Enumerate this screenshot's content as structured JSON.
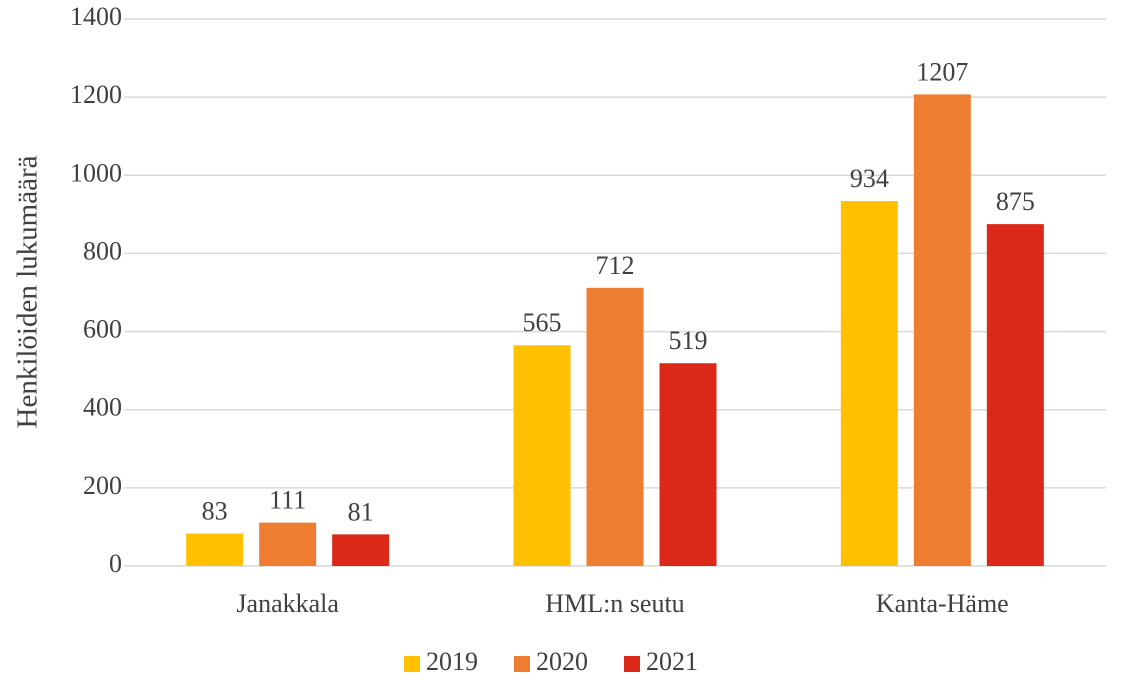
{
  "chart_data": {
    "type": "bar",
    "y_label": "Henkilöiden lukumäärä",
    "categories": [
      "Janakkala",
      "HML:n seutu",
      "Kanta-Häme"
    ],
    "series": [
      {
        "name": "2019",
        "color": "#ffc000",
        "values": [
          83,
          565,
          934
        ]
      },
      {
        "name": "2020",
        "color": "#ed7d31",
        "values": [
          111,
          712,
          1207
        ]
      },
      {
        "name": "2021",
        "color": "#dc2818",
        "values": [
          81,
          519,
          875
        ]
      }
    ],
    "ylim": [
      0,
      1400
    ],
    "yticks": [
      0,
      200,
      400,
      600,
      800,
      1000,
      1200,
      1400
    ],
    "grid": true,
    "legend": "bottom"
  }
}
